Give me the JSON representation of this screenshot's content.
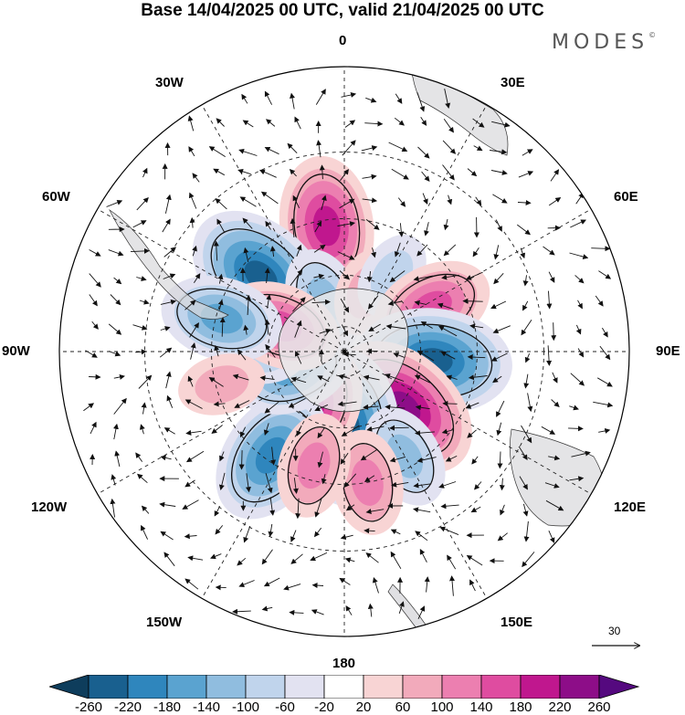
{
  "title": "Base 14/04/2025 00 UTC, valid 21/04/2025 00 UTC",
  "brand": "MODES",
  "brand_mark": "©",
  "longitude_labels": {
    "n0": "0",
    "n30e": "30E",
    "n60e": "60E",
    "n90e": "90E",
    "n120e": "120E",
    "n150e": "150E",
    "n180": "180",
    "n150w": "150W",
    "n120w": "120W",
    "n90w": "90W",
    "n60w": "60W",
    "n30w": "30W"
  },
  "reference_vector": {
    "value": "30"
  },
  "colorbar": {
    "labels": [
      "-260",
      "-220",
      "-180",
      "-140",
      "-100",
      "-60",
      "-20",
      "20",
      "60",
      "100",
      "140",
      "180",
      "220",
      "260"
    ],
    "colors": [
      "#0e3d5c",
      "#19608f",
      "#2f86bd",
      "#5aa3d0",
      "#90bddf",
      "#c0d4ec",
      "#e2e2f1",
      "#ffffff",
      "#f8d4d4",
      "#f2aabb",
      "#ec7fb0",
      "#df4ca0",
      "#c0178e",
      "#8d0d88",
      "#55097f"
    ]
  },
  "map_data": {
    "projection": "south polar stereographic",
    "anomalies": [
      {
        "lon": -8,
        "lat": -42,
        "value": 200
      },
      {
        "lon": -48,
        "lat": -47,
        "value": -220
      },
      {
        "lon": -22,
        "lat": -68,
        "value": -100
      },
      {
        "lon": 20,
        "lat": -65,
        "value": 80
      },
      {
        "lon": 32,
        "lat": -55,
        "value": -80
      },
      {
        "lon": 63,
        "lat": -52,
        "value": 160
      },
      {
        "lon": 96,
        "lat": -55,
        "value": -240
      },
      {
        "lon": 133,
        "lat": -58,
        "value": 220
      },
      {
        "lon": 178,
        "lat": -60,
        "value": -240
      },
      {
        "lon": 150,
        "lat": -44,
        "value": -120
      },
      {
        "lon": 170,
        "lat": -40,
        "value": 100
      },
      {
        "lon": -150,
        "lat": -62,
        "value": 200
      },
      {
        "lon": -145,
        "lat": -42,
        "value": -200
      },
      {
        "lon": -165,
        "lat": -45,
        "value": 100
      },
      {
        "lon": -110,
        "lat": -68,
        "value": -140
      },
      {
        "lon": -92,
        "lat": -58,
        "value": -80
      },
      {
        "lon": -68,
        "lat": -63,
        "value": 160
      },
      {
        "lon": -75,
        "lat": -42,
        "value": -140
      },
      {
        "lon": -105,
        "lat": -42,
        "value": 60
      }
    ]
  }
}
